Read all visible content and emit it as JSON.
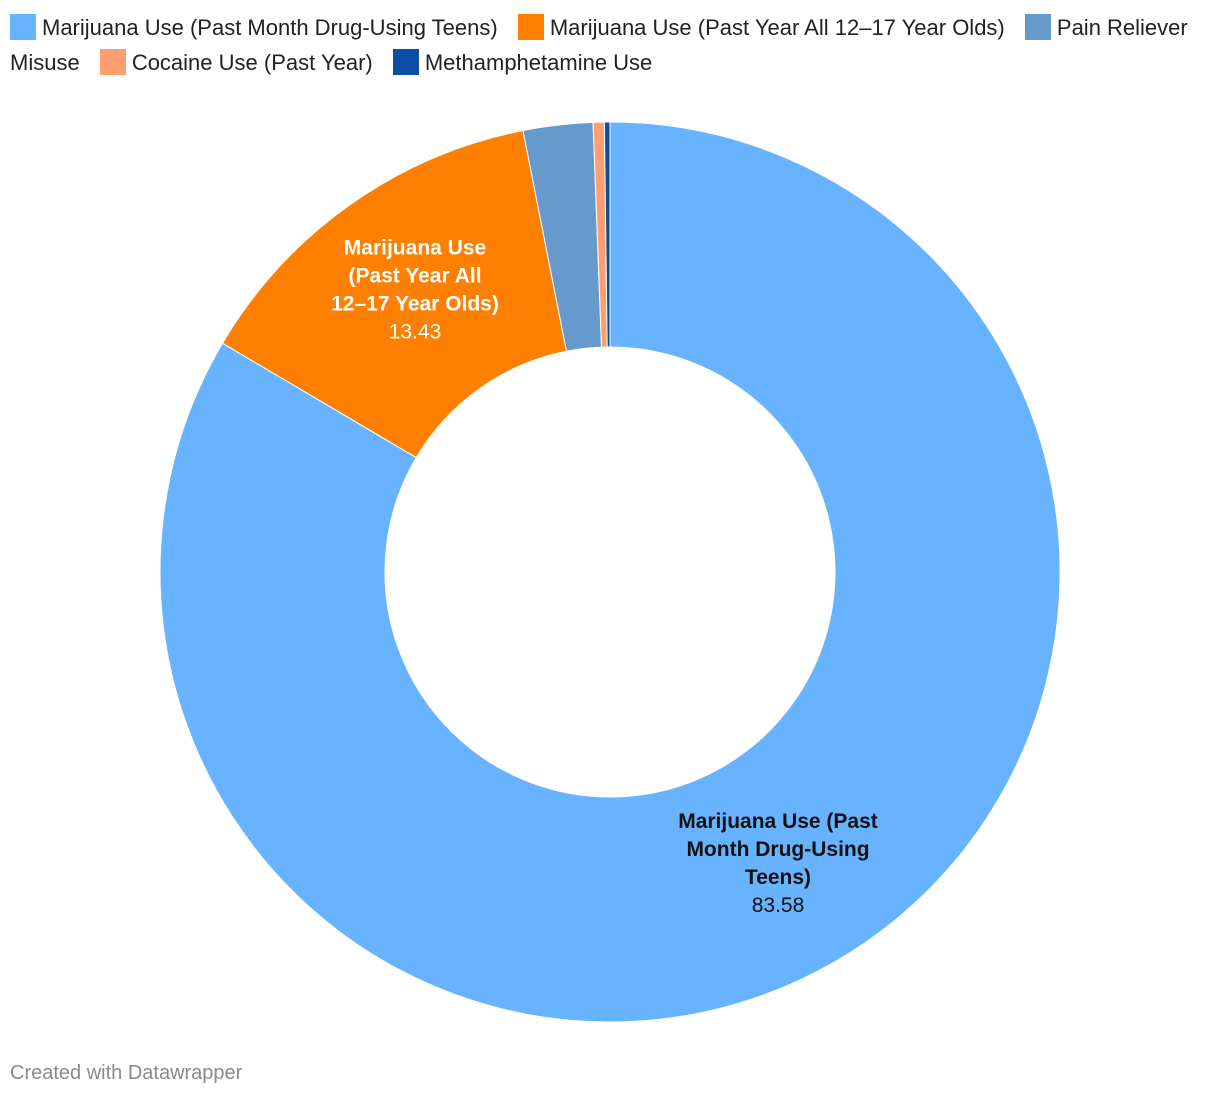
{
  "chart_data": {
    "type": "pie",
    "donut": true,
    "series": [
      {
        "name": "Marijuana Use (Past Month Drug-Using Teens)",
        "value": 83.58,
        "color": "#68b3ff",
        "label_lines": [
          "Marijuana Use (Past",
          "Month Drug-Using",
          "Teens)"
        ],
        "value_label": "83.58",
        "label_color": "#111111"
      },
      {
        "name": "Marijuana Use (Past Year All 12–17 Year Olds)",
        "value": 13.43,
        "color": "#ff7f00",
        "label_lines": [
          "Marijuana Use",
          "(Past Year All",
          "12–17 Year Olds)"
        ],
        "value_label": "13.43",
        "label_color": "#ffffff"
      },
      {
        "name": "Pain Reliever Misuse",
        "value": 2.5,
        "color": "#6699cc"
      },
      {
        "name": "Cocaine Use (Past Year)",
        "value": 0.4,
        "color": "#ff9e6e"
      },
      {
        "name": "Methamphetamine Use",
        "value": 0.2,
        "color": "#0a4ea8"
      }
    ],
    "legend_position": "top"
  },
  "footer": {
    "credit": "Created with Datawrapper"
  }
}
